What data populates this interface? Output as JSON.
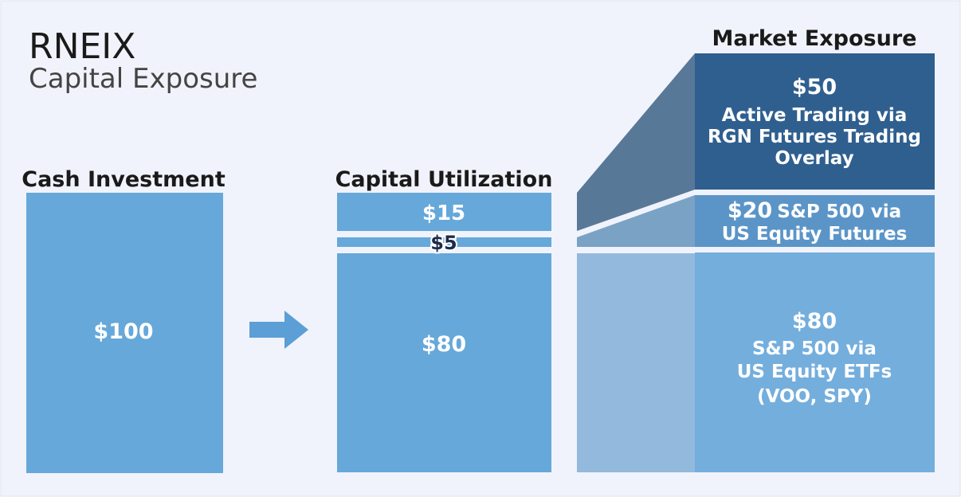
{
  "header": {
    "title": "RNEIX",
    "subtitle": "Capital Exposure"
  },
  "columns": [
    {
      "heading": "Cash Investment",
      "blocks": [
        {
          "amount": "$100"
        }
      ]
    },
    {
      "heading": "Capital Utilization",
      "blocks": [
        {
          "amount": "$15"
        },
        {
          "amount": "$5"
        },
        {
          "amount": "$80"
        }
      ]
    },
    {
      "heading": "Market Exposure",
      "blocks": [
        {
          "amount": "$50",
          "label": [
            "Active Trading via",
            "RGN Futures Trading",
            "Overlay"
          ]
        },
        {
          "amount": "$20",
          "label": [
            "S&P 500 via",
            "US Equity Futures"
          ]
        },
        {
          "amount": "$80",
          "label": [
            "S&P 500 via",
            "US Equity ETFs",
            "(VOO, SPY)"
          ]
        }
      ]
    }
  ]
}
